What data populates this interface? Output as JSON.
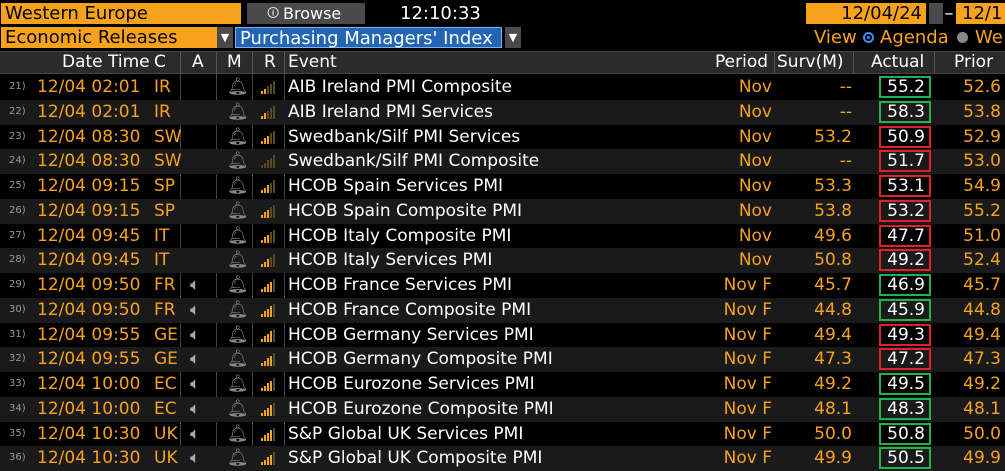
{
  "toolbar": {
    "region": "Western Europe",
    "browse_label": "Browse",
    "clock": "12:10:33",
    "start_date": "12/04/24",
    "end_date": "12/1",
    "releases": "Economic Releases",
    "filter": "Purchasing Managers' Index",
    "view_label": "View",
    "agenda_label": "Agenda",
    "weekly_label": "We"
  },
  "columns": {
    "datetime": "Date Time",
    "country": "C",
    "a": "A",
    "m": "M",
    "r": "R",
    "event": "Event",
    "period": "Period",
    "survey": "Surv(M)",
    "actual": "Actual",
    "prior": "Prior"
  },
  "colors": {
    "accent": "#f7a21b",
    "good": "#22b14c",
    "bad": "#e0202a"
  },
  "rows": [
    {
      "num": "21)",
      "dt": "12/04 02:01",
      "c": "IR",
      "alert": "",
      "bars": 2,
      "event": "AIB Ireland PMI Composite",
      "period": "Nov",
      "surv": "--",
      "actual": "55.2",
      "prior": "52.6",
      "box": "good"
    },
    {
      "num": "22)",
      "dt": "12/04 02:01",
      "c": "IR",
      "alert": "",
      "bars": 2,
      "event": "AIB Ireland PMI Services",
      "period": "Nov",
      "surv": "--",
      "actual": "58.3",
      "prior": "53.8",
      "box": "good"
    },
    {
      "num": "23)",
      "dt": "12/04 08:30",
      "c": "SW",
      "alert": "",
      "bars": 3,
      "event": "Swedbank/Silf PMI Services",
      "period": "Nov",
      "surv": "53.2",
      "actual": "50.9",
      "prior": "52.9",
      "box": "bad"
    },
    {
      "num": "24)",
      "dt": "12/04 08:30",
      "c": "SW",
      "alert": "",
      "bars": 0,
      "event": "Swedbank/Silf PMI Composite",
      "period": "Nov",
      "surv": "--",
      "actual": "51.7",
      "prior": "53.0",
      "box": "bad"
    },
    {
      "num": "25)",
      "dt": "12/04 09:15",
      "c": "SP",
      "alert": "",
      "bars": 3,
      "event": "HCOB Spain Services PMI",
      "period": "Nov",
      "surv": "53.3",
      "actual": "53.1",
      "prior": "54.9",
      "box": "bad"
    },
    {
      "num": "26)",
      "dt": "12/04 09:15",
      "c": "SP",
      "alert": "",
      "bars": 3,
      "event": "HCOB Spain Composite PMI",
      "period": "Nov",
      "surv": "53.8",
      "actual": "53.2",
      "prior": "55.2",
      "box": "bad"
    },
    {
      "num": "27)",
      "dt": "12/04 09:45",
      "c": "IT",
      "alert": "",
      "bars": 3,
      "event": "HCOB Italy Composite PMI",
      "period": "Nov",
      "surv": "49.6",
      "actual": "47.7",
      "prior": "51.0",
      "box": "bad"
    },
    {
      "num": "28)",
      "dt": "12/04 09:45",
      "c": "IT",
      "alert": "",
      "bars": 3,
      "event": "HCOB Italy Services PMI",
      "period": "Nov",
      "surv": "50.8",
      "actual": "49.2",
      "prior": "52.4",
      "box": "bad"
    },
    {
      "num": "29)",
      "dt": "12/04 09:50",
      "c": "FR",
      "alert": "spk",
      "bars": 4,
      "event": "HCOB France Services PMI",
      "period": "Nov F",
      "surv": "45.7",
      "actual": "46.9",
      "prior": "45.7",
      "box": "good"
    },
    {
      "num": "30)",
      "dt": "12/04 09:50",
      "c": "FR",
      "alert": "spk",
      "bars": 4,
      "event": "HCOB France Composite PMI",
      "period": "Nov F",
      "surv": "44.8",
      "actual": "45.9",
      "prior": "44.8",
      "box": "good"
    },
    {
      "num": "31)",
      "dt": "12/04 09:55",
      "c": "GE",
      "alert": "spk",
      "bars": 4,
      "event": "HCOB Germany Services PMI",
      "period": "Nov F",
      "surv": "49.4",
      "actual": "49.3",
      "prior": "49.4",
      "box": "bad"
    },
    {
      "num": "32)",
      "dt": "12/04 09:55",
      "c": "GE",
      "alert": "spk",
      "bars": 4,
      "event": "HCOB Germany Composite PMI",
      "period": "Nov F",
      "surv": "47.3",
      "actual": "47.2",
      "prior": "47.3",
      "box": "bad"
    },
    {
      "num": "33)",
      "dt": "12/04 10:00",
      "c": "EC",
      "alert": "spk",
      "bars": 4,
      "event": "HCOB Eurozone Services PMI",
      "period": "Nov F",
      "surv": "49.2",
      "actual": "49.5",
      "prior": "49.2",
      "box": "good"
    },
    {
      "num": "34)",
      "dt": "12/04 10:00",
      "c": "EC",
      "alert": "spk",
      "bars": 4,
      "event": "HCOB Eurozone Composite PMI",
      "period": "Nov F",
      "surv": "48.1",
      "actual": "48.3",
      "prior": "48.1",
      "box": "good"
    },
    {
      "num": "35)",
      "dt": "12/04 10:30",
      "c": "UK",
      "alert": "spk",
      "bars": 4,
      "event": "S&P Global UK Services PMI",
      "period": "Nov F",
      "surv": "50.0",
      "actual": "50.8",
      "prior": "50.0",
      "box": "good"
    },
    {
      "num": "36)",
      "dt": "12/04 10:30",
      "c": "UK",
      "alert": "spk",
      "bars": 4,
      "event": "S&P Global UK Composite PMI",
      "period": "Nov F",
      "surv": "49.9",
      "actual": "50.5",
      "prior": "49.9",
      "box": "good"
    }
  ]
}
